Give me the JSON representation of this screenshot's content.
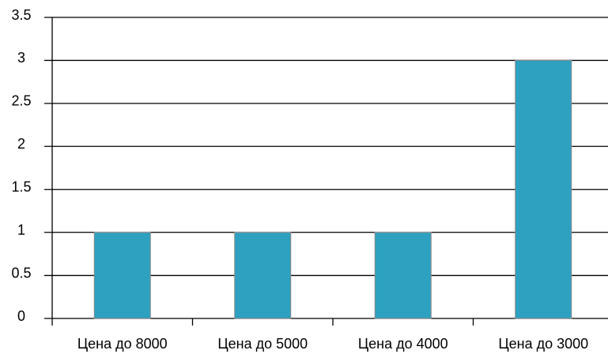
{
  "chart_data": {
    "type": "bar",
    "categories": [
      "Цена до 8000",
      "Цена до 5000",
      "Цена до 4000",
      "Цена до 3000"
    ],
    "values": [
      1,
      1,
      1,
      3
    ],
    "color": "#2ea1c1",
    "ylim": [
      0,
      3.5
    ],
    "yticks": [
      0,
      0.5,
      1,
      1.5,
      2,
      2.5,
      3,
      3.5
    ],
    "grid": true
  }
}
